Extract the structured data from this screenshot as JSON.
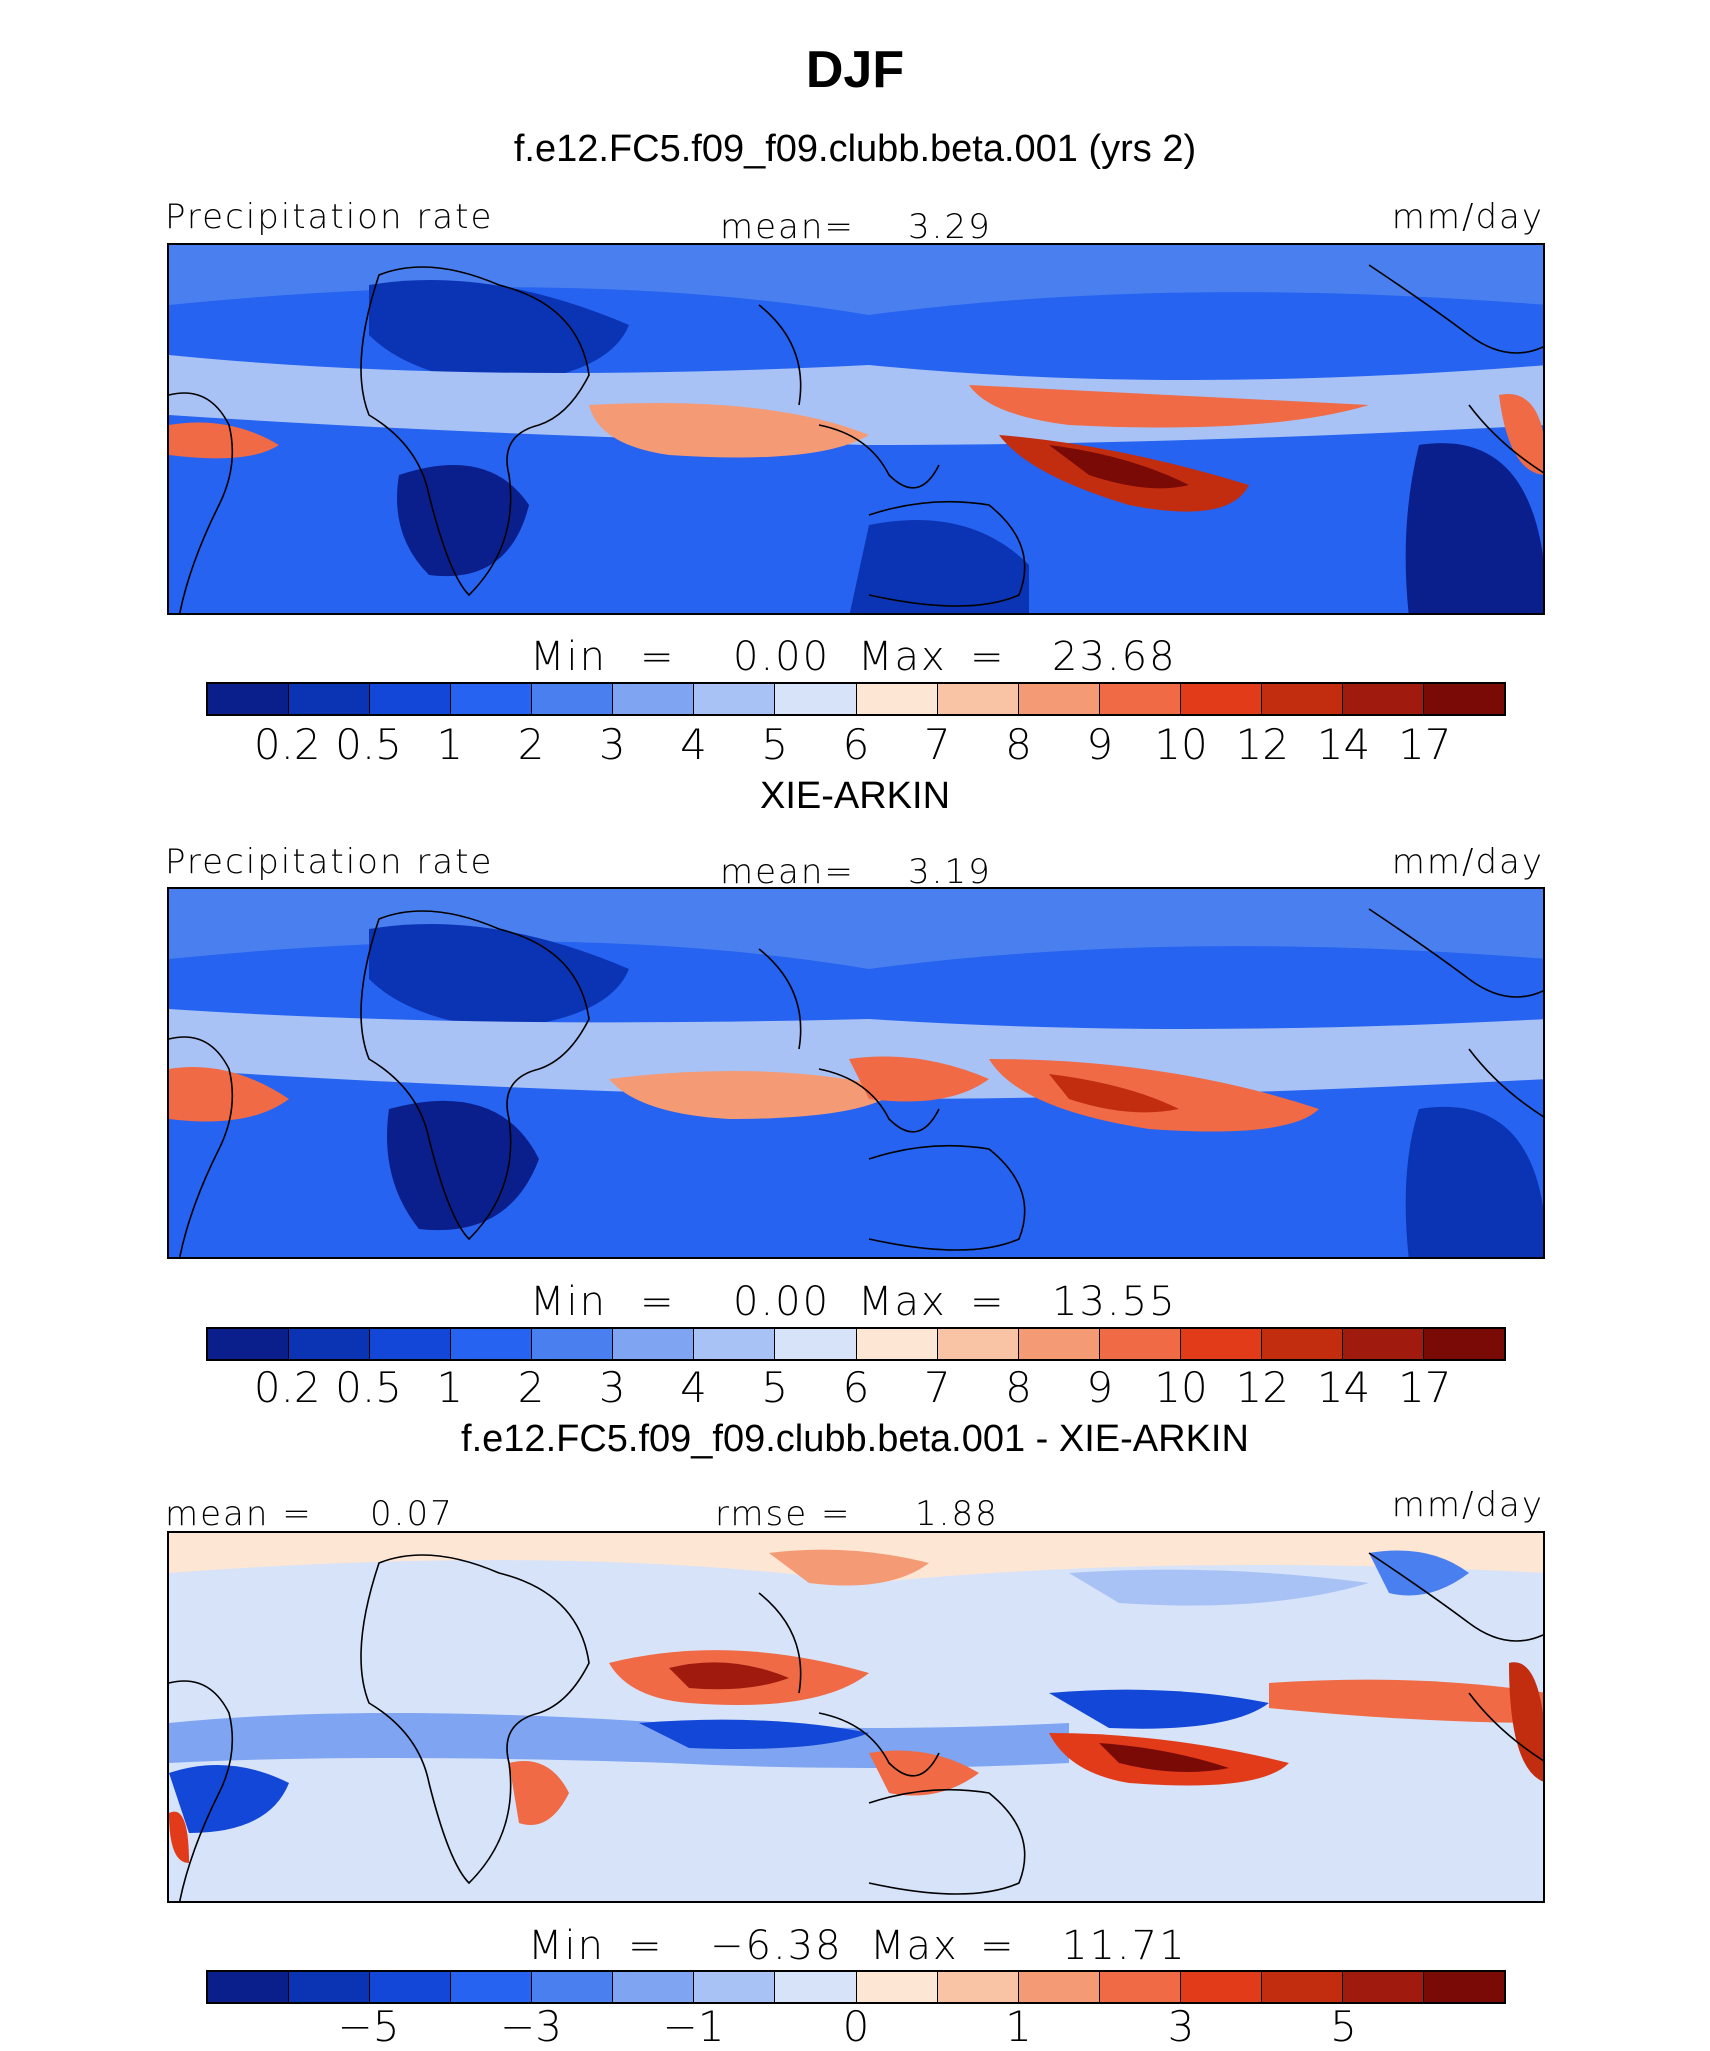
{
  "figure": {
    "season": "DJF",
    "unit": "mm/day",
    "panels": [
      {
        "caption": "f.e12.FC5.f09_f09.clubb.beta.001 (yrs 2)",
        "variable": "Precipitation rate",
        "stat_label": "mean=",
        "stat_value": "3.29",
        "unit": "mm/day",
        "min_label": "Min",
        "min_value": "0.00",
        "max_label": "Max",
        "max_value": "23.68"
      },
      {
        "caption": "XIE-ARKIN",
        "variable": "Precipitation rate",
        "stat_label": "mean=",
        "stat_value": "3.19",
        "unit": "mm/day",
        "min_label": "Min",
        "min_value": "0.00",
        "max_label": "Max",
        "max_value": "13.55"
      },
      {
        "caption": "f.e12.FC5.f09_f09.clubb.beta.001 - XIE-ARKIN",
        "mean_label": "mean =",
        "mean_value": "0.07",
        "rmse_label": "rmse =",
        "rmse_value": "1.88",
        "unit": "mm/day",
        "min_label": "Min",
        "min_value": "−6.38",
        "max_label": "Max",
        "max_value": "11.71"
      }
    ],
    "abs_levels": [
      "0.2",
      "0.5",
      "1",
      "2",
      "3",
      "4",
      "5",
      "6",
      "7",
      "8",
      "9",
      "10",
      "12",
      "14",
      "17"
    ],
    "diff_levels": [
      "−5",
      "−3",
      "−1",
      "0",
      "1",
      "3",
      "5"
    ],
    "colors": [
      "#0a1f8c",
      "#0b34b5",
      "#1247d8",
      "#2563f0",
      "#4a7fef",
      "#7ea4f2",
      "#a9c2f5",
      "#d6e3f9",
      "#fde6d4",
      "#f9c3a6",
      "#f49a75",
      "#ef6a45",
      "#e23b1a",
      "#c22d10",
      "#a01b0d",
      "#7a0a06"
    ]
  }
}
